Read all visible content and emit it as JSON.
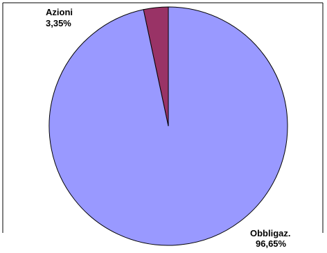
{
  "chart_data": {
    "type": "pie",
    "title": "",
    "slices": [
      {
        "label": "Azioni",
        "value": 3.35,
        "value_label": "3,35%",
        "color": "#993366"
      },
      {
        "label": "Obbligaz.",
        "value": 96.65,
        "value_label": "96,65%",
        "color": "#9999FF"
      }
    ],
    "start_angle": "12 o'clock",
    "direction": "counter-clockwise",
    "legend": "none",
    "frame_border": true
  }
}
